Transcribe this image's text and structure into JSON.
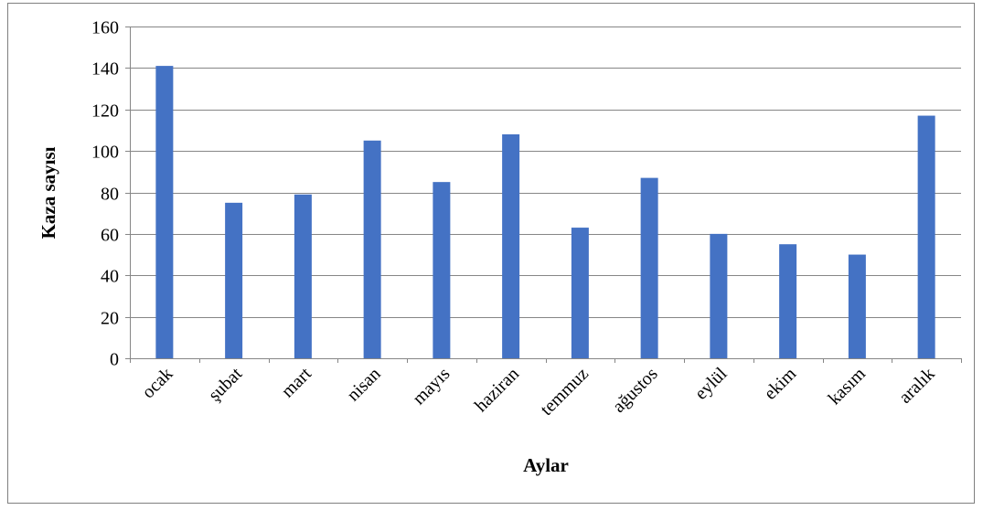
{
  "chart_data": {
    "type": "bar",
    "title": "",
    "xlabel": "Aylar",
    "ylabel": "Kaza sayısı",
    "categories": [
      "ocak",
      "şubat",
      "mart",
      "nisan",
      "mayıs",
      "haziran",
      "temmuz",
      "ağustos",
      "eylül",
      "ekim",
      "kasım",
      "aralık"
    ],
    "values": [
      141,
      75,
      79,
      105,
      85,
      108,
      63,
      87,
      60,
      55,
      50,
      117
    ],
    "ylim": [
      0,
      160
    ],
    "yticks": [
      0,
      20,
      40,
      60,
      80,
      100,
      120,
      140,
      160
    ],
    "grid": true,
    "legend": "none",
    "bar_color": "#4472C4",
    "grid_color": "#868686"
  }
}
